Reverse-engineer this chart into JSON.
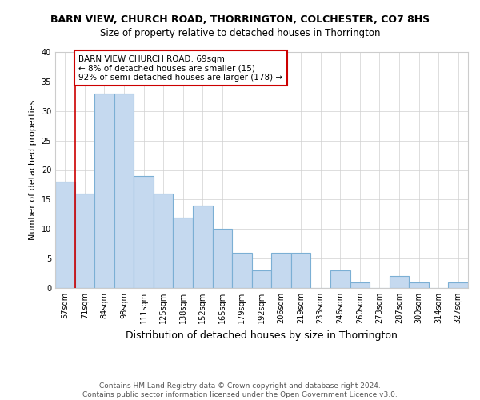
{
  "title": "BARN VIEW, CHURCH ROAD, THORRINGTON, COLCHESTER, CO7 8HS",
  "subtitle": "Size of property relative to detached houses in Thorrington",
  "xlabel": "Distribution of detached houses by size in Thorrington",
  "ylabel": "Number of detached properties",
  "categories": [
    "57sqm",
    "71sqm",
    "84sqm",
    "98sqm",
    "111sqm",
    "125sqm",
    "138sqm",
    "152sqm",
    "165sqm",
    "179sqm",
    "192sqm",
    "206sqm",
    "219sqm",
    "233sqm",
    "246sqm",
    "260sqm",
    "273sqm",
    "287sqm",
    "300sqm",
    "314sqm",
    "327sqm"
  ],
  "values": [
    18,
    16,
    33,
    33,
    19,
    16,
    12,
    14,
    10,
    6,
    3,
    6,
    6,
    0,
    3,
    1,
    0,
    2,
    1,
    0,
    1
  ],
  "bar_color": "#c5d9ef",
  "bar_edge_color": "#7bafd4",
  "annotation_line1": "BARN VIEW CHURCH ROAD: 69sqm",
  "annotation_line2": "← 8% of detached houses are smaller (15)",
  "annotation_line3": "92% of semi-detached houses are larger (178) →",
  "annotation_box_color": "#ffffff",
  "annotation_box_edge_color": "#cc0000",
  "vline_color": "#cc0000",
  "ylim": [
    0,
    40
  ],
  "yticks": [
    0,
    5,
    10,
    15,
    20,
    25,
    30,
    35,
    40
  ],
  "footer": "Contains HM Land Registry data © Crown copyright and database right 2024.\nContains public sector information licensed under the Open Government Licence v3.0.",
  "title_fontsize": 9,
  "subtitle_fontsize": 8.5,
  "xlabel_fontsize": 9,
  "ylabel_fontsize": 8,
  "tick_fontsize": 7,
  "annotation_fontsize": 7.5,
  "footer_fontsize": 6.5,
  "figsize": [
    6.0,
    5.0
  ],
  "dpi": 100
}
